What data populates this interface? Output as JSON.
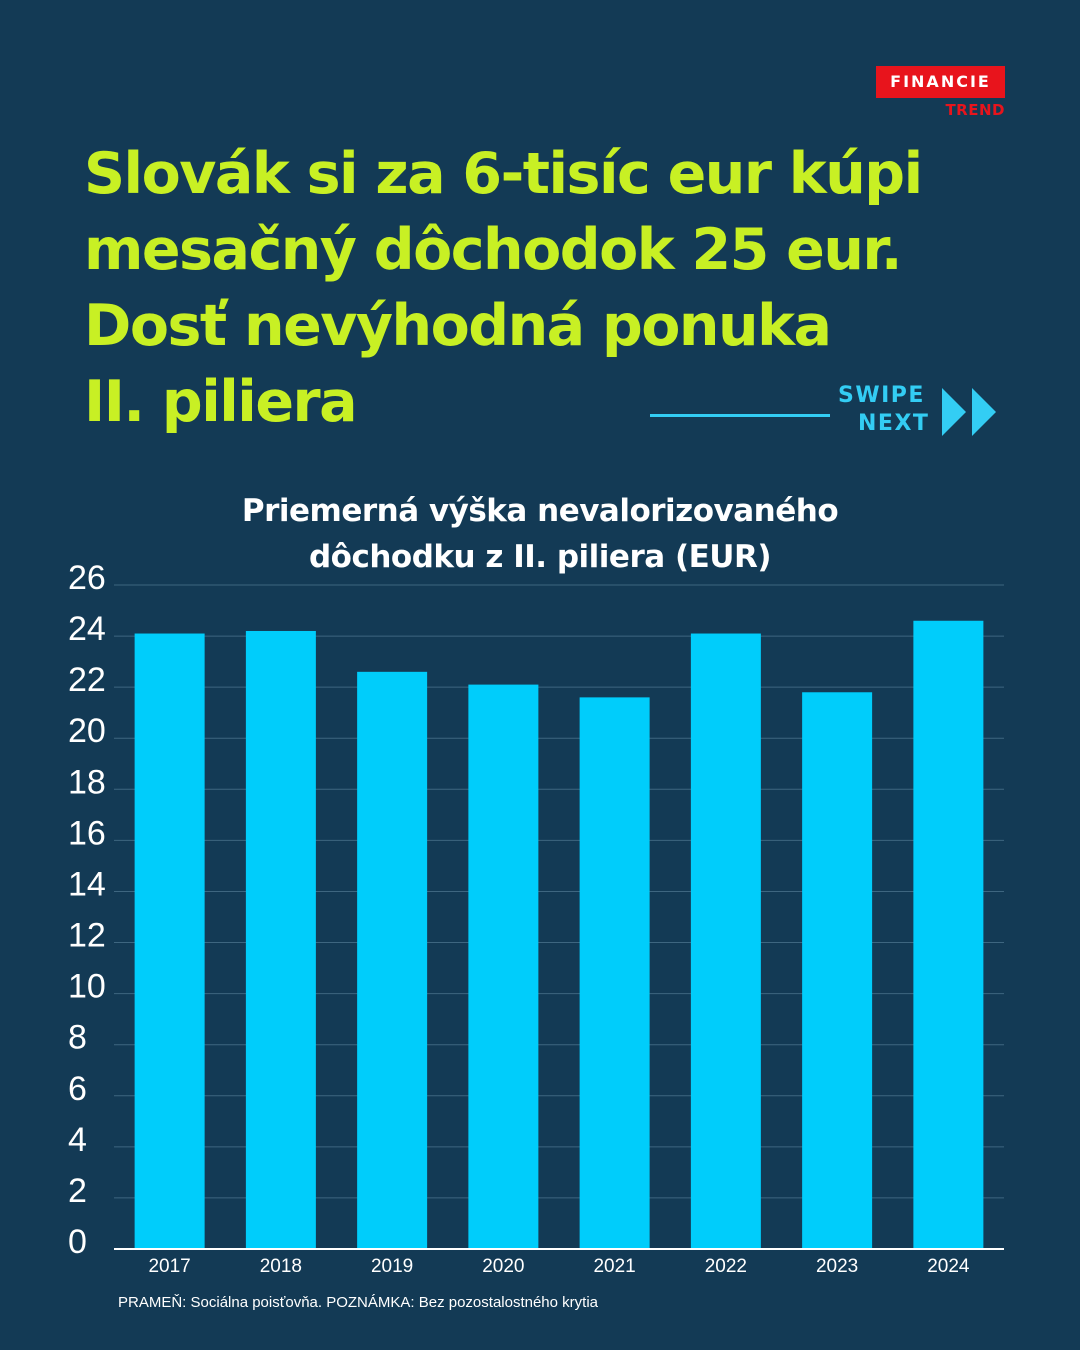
{
  "brand": {
    "badge": "FINANCIE",
    "sub": "TREND",
    "color": "#e8141c"
  },
  "headline": [
    "Slovák si za 6-tisíc eur kúpi",
    "mesačný dôchodok 25 eur.",
    "Dosť nevýhodná ponuka",
    "II. piliera"
  ],
  "swipe": {
    "line1": "SWIPE",
    "line2": "NEXT",
    "icon": "double-chevron-right-icon"
  },
  "colors": {
    "background": "#133a55",
    "headline": "#c8f024",
    "bars": "#00cdfb",
    "accent": "#33cdf4"
  },
  "chart_data": {
    "type": "bar",
    "title_lines": [
      "Priemerná výška nevalorizovaného",
      "dôchodku  z II. piliera (EUR)"
    ],
    "categories": [
      "2017",
      "2018",
      "2019",
      "2020",
      "2021",
      "2022",
      "2023",
      "2024"
    ],
    "values": [
      24.1,
      24.2,
      22.6,
      22.1,
      21.6,
      24.1,
      21.8,
      24.6
    ],
    "ylim": [
      0,
      26
    ],
    "yticks": [
      0,
      2,
      4,
      6,
      8,
      10,
      12,
      14,
      16,
      18,
      20,
      22,
      24,
      26
    ],
    "grid": true,
    "xlabel": "",
    "ylabel": ""
  },
  "source": "PRAMEŇ: Sociálna poisťovňa. POZNÁMKA: Bez pozostalostného krytia"
}
